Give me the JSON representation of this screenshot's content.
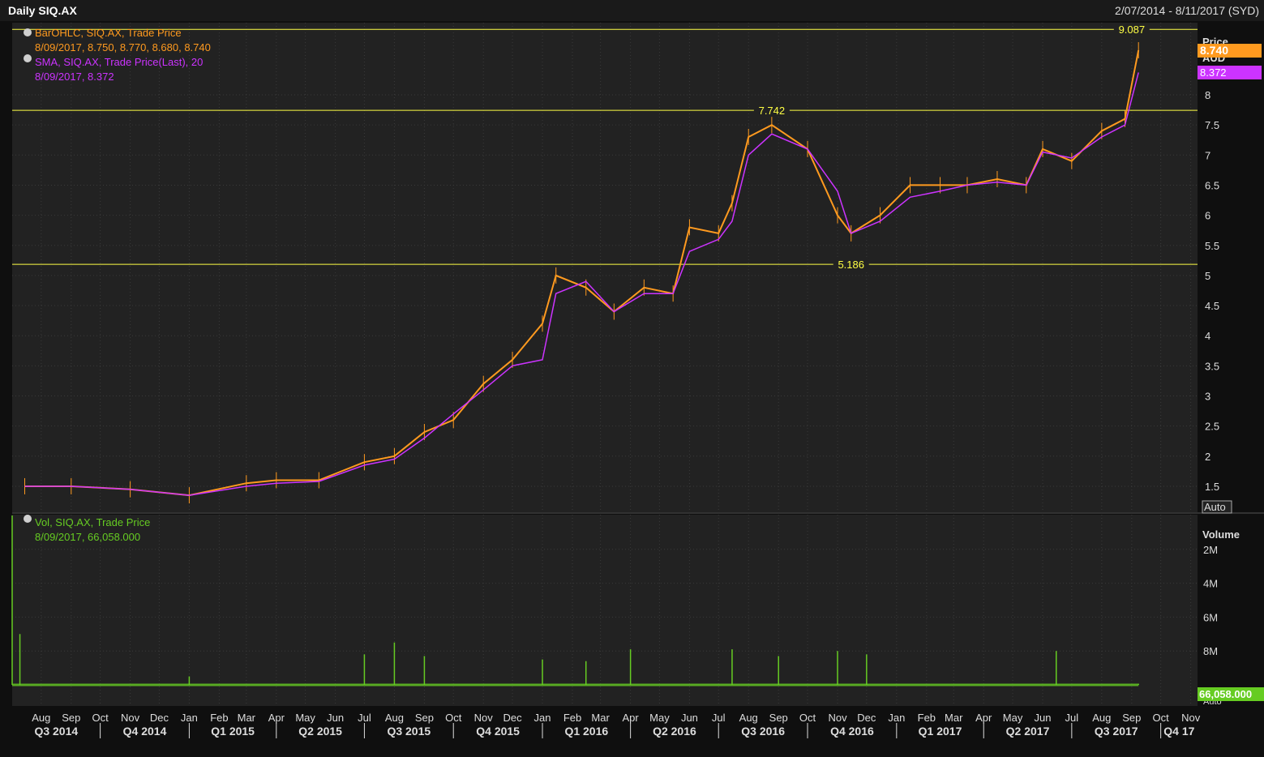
{
  "header": {
    "title": "Daily SIQ.AX",
    "range": "2/07/2014 - 8/11/2017 (SYD)"
  },
  "legend": {
    "ohlc_title": "BarOHLC, SIQ.AX, Trade Price",
    "ohlc_values": "8/09/2017, 8.750, 8.770, 8.680, 8.740",
    "sma_title": "SMA, SIQ.AX, Trade Price(Last),  20",
    "sma_values": "8/09/2017, 8.372",
    "vol_title": "Vol, SIQ.AX, Trade Price",
    "vol_values": "8/09/2017, 66,058.000"
  },
  "price_axis": {
    "title": "Price",
    "currency": "AUD",
    "ticks": [
      "8",
      "7.5",
      "7",
      "6.5",
      "6",
      "5.5",
      "5",
      "4.5",
      "4",
      "3.5",
      "3",
      "2.5",
      "2",
      "1.5"
    ],
    "last_price": "8.740",
    "last_sma": "8.372",
    "auto_label": "Auto"
  },
  "volume_axis": {
    "title": "Volume",
    "ticks": [
      "8M",
      "6M",
      "4M",
      "2M"
    ],
    "last_volume": "66,058.000",
    "last_label_partial": "Auto"
  },
  "hlines": [
    "9.087",
    "7.742",
    "5.186"
  ],
  "months": [
    "Aug",
    "Sep",
    "Oct",
    "Nov",
    "Dec",
    "Jan",
    "Feb",
    "Mar",
    "Apr",
    "May",
    "Jun",
    "Jul",
    "Aug",
    "Sep",
    "Oct",
    "Nov",
    "Dec",
    "Jan",
    "Feb",
    "Mar",
    "Apr",
    "May",
    "Jun",
    "Jul",
    "Aug",
    "Sep",
    "Oct",
    "Nov",
    "Dec",
    "Jan",
    "Feb",
    "Mar",
    "Apr",
    "May",
    "Jun",
    "Jul",
    "Aug",
    "Sep",
    "Oct",
    "Nov"
  ],
  "quarters": [
    "Q3 2014",
    "Q4 2014",
    "Q1 2015",
    "Q2 2015",
    "Q3 2015",
    "Q4 2015",
    "Q1 2016",
    "Q2 2016",
    "Q3 2016",
    "Q4 2016",
    "Q1 2017",
    "Q2 2017",
    "Q3 2017",
    "Q4 17"
  ],
  "colors": {
    "background": "#0f0f0f",
    "panel": "#222222",
    "grid": "#3a3a3a",
    "ohlc": "#ff9a1f",
    "sma": "#cc33ff",
    "hline": "#ffff44",
    "volume": "#66cc22",
    "text": "#dddddd"
  },
  "chart_data": [
    {
      "type": "line",
      "title": "Daily SIQ.AX",
      "date_range": [
        "2014-07-02",
        "2017-11-08"
      ],
      "x": [
        "2014-07-15",
        "2014-09-01",
        "2014-11-01",
        "2015-01-01",
        "2015-03-01",
        "2015-04-01",
        "2015-05-15",
        "2015-07-01",
        "2015-08-01",
        "2015-09-01",
        "2015-10-01",
        "2015-11-01",
        "2015-12-01",
        "2016-01-01",
        "2016-01-15",
        "2016-02-15",
        "2016-03-15",
        "2016-04-15",
        "2016-05-15",
        "2016-06-01",
        "2016-07-01",
        "2016-07-15",
        "2016-08-01",
        "2016-08-25",
        "2016-10-01",
        "2016-11-01",
        "2016-11-15",
        "2016-12-15",
        "2017-01-15",
        "2017-02-15",
        "2017-03-15",
        "2017-04-15",
        "2017-05-15",
        "2017-06-01",
        "2017-07-01",
        "2017-08-01",
        "2017-08-25",
        "2017-09-08"
      ],
      "series": [
        {
          "name": "BarOHLC, SIQ.AX, Trade Price",
          "values": [
            1.5,
            1.5,
            1.45,
            1.35,
            1.55,
            1.6,
            1.6,
            1.9,
            2.0,
            2.4,
            2.6,
            3.2,
            3.6,
            4.2,
            5.0,
            4.8,
            4.4,
            4.8,
            4.7,
            5.8,
            5.7,
            6.2,
            7.3,
            7.5,
            7.1,
            6.0,
            5.7,
            6.0,
            6.5,
            6.5,
            6.5,
            6.6,
            6.5,
            7.1,
            6.9,
            7.4,
            7.6,
            8.74
          ]
        },
        {
          "name": "SMA, SIQ.AX, Trade Price(Last),  20",
          "values": [
            1.5,
            1.5,
            1.45,
            1.35,
            1.5,
            1.55,
            1.58,
            1.85,
            1.95,
            2.3,
            2.7,
            3.1,
            3.5,
            3.6,
            4.7,
            4.9,
            4.4,
            4.7,
            4.7,
            5.4,
            5.6,
            5.9,
            7.0,
            7.35,
            7.1,
            6.4,
            5.7,
            5.9,
            6.3,
            6.4,
            6.5,
            6.55,
            6.5,
            7.05,
            6.95,
            7.3,
            7.5,
            8.372
          ]
        }
      ],
      "ylim": [
        1.2,
        9.2
      ],
      "yticks": [
        1.5,
        2,
        2.5,
        3,
        3.5,
        4,
        4.5,
        5,
        5.5,
        6,
        6.5,
        7,
        7.5,
        8
      ],
      "reference_lines": [
        9.087,
        7.742,
        5.186
      ]
    },
    {
      "type": "bar",
      "title": "Vol, SIQ.AX, Trade Price",
      "x": [
        "2014-07-02",
        "2014-07-10",
        "2015-01-01",
        "2015-07-01",
        "2015-08-01",
        "2015-09-01",
        "2016-01-01",
        "2016-02-15",
        "2016-04-01",
        "2016-07-15",
        "2016-09-01",
        "2016-11-01",
        "2016-12-01",
        "2017-06-15",
        "2017-09-08"
      ],
      "values": [
        10000000,
        3000000,
        500000,
        1800000,
        2500000,
        1700000,
        1500000,
        1400000,
        2100000,
        2100000,
        1700000,
        2000000,
        1800000,
        2000000,
        66058
      ],
      "ylim": [
        0,
        10000000
      ],
      "yticks": [
        2000000,
        4000000,
        6000000,
        8000000
      ]
    }
  ]
}
